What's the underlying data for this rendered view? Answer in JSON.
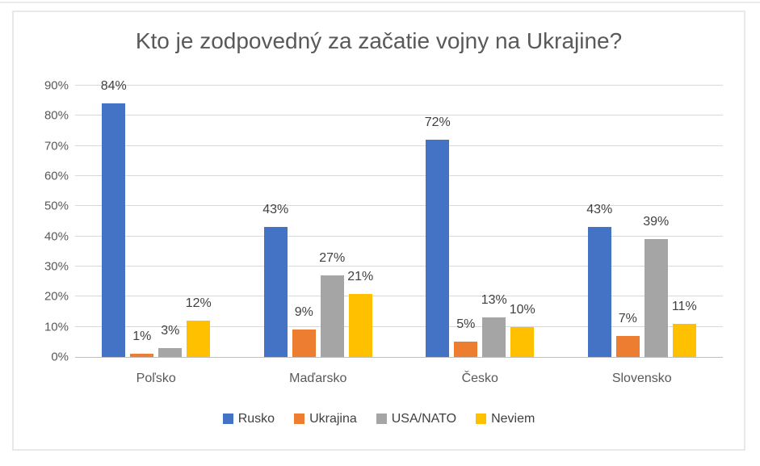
{
  "chart_data": {
    "type": "bar",
    "title": "Kto je zodpovedný za začatie vojny na Ukrajine?",
    "categories": [
      "Poľsko",
      "Maďarsko",
      "Česko",
      "Slovensko"
    ],
    "series": [
      {
        "name": "Rusko",
        "color": "#4472C4",
        "values": [
          84,
          43,
          72,
          43
        ]
      },
      {
        "name": "Ukrajina",
        "color": "#ED7D31",
        "values": [
          1,
          9,
          5,
          7
        ]
      },
      {
        "name": "USA/NATO",
        "color": "#A5A5A5",
        "values": [
          3,
          27,
          13,
          39
        ]
      },
      {
        "name": "Neviem",
        "color": "#FFC000",
        "values": [
          12,
          21,
          10,
          11
        ]
      }
    ],
    "value_suffix": "%",
    "y_axis": {
      "min": 0,
      "max": 90,
      "step": 10,
      "ticks": [
        "0%",
        "10%",
        "20%",
        "30%",
        "40%",
        "50%",
        "60%",
        "70%",
        "80%",
        "90%"
      ]
    },
    "grid": true,
    "legend_position": "bottom"
  }
}
